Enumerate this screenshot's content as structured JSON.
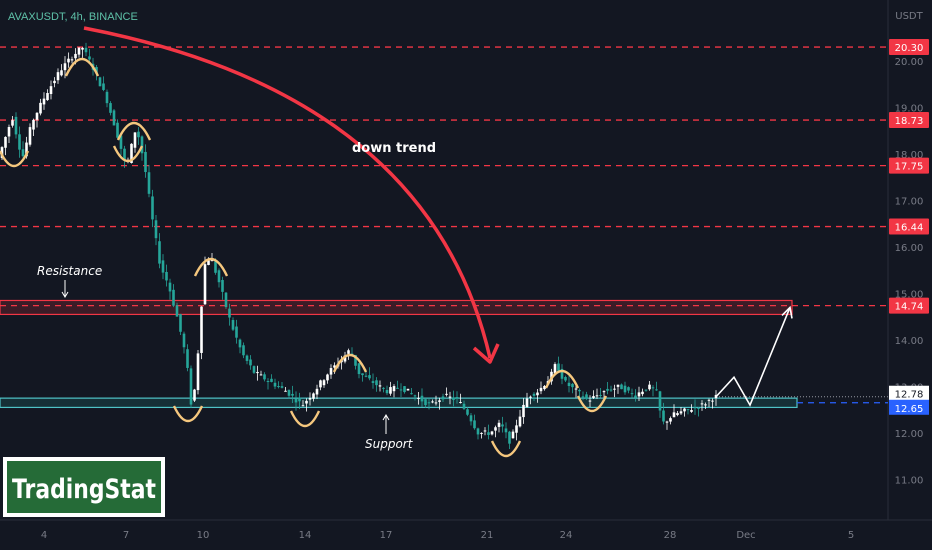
{
  "chart_data": {
    "type": "candlestick",
    "title": "AVAXUSDT, 4h, BINANCE",
    "currency": "USDT",
    "x_ticks": [
      "4",
      "7",
      "10",
      "14",
      "17",
      "21",
      "24",
      "28",
      "Dec",
      "5"
    ],
    "y_ticks": [
      "20.00",
      "19.00",
      "18.00",
      "17.00",
      "16.00",
      "15.00",
      "14.00",
      "13.00",
      "12.00",
      "11.00"
    ],
    "ylim": [
      10.2,
      21.0
    ],
    "levels": [
      {
        "label": "20.30",
        "value": 20.3
      },
      {
        "label": "18.73",
        "value": 18.73
      },
      {
        "label": "17.75",
        "value": 17.75
      },
      {
        "label": "16.44",
        "value": 16.44
      },
      {
        "label": "14.74",
        "value": 14.74
      }
    ],
    "current_price": {
      "label": "12.78",
      "value": 12.78
    },
    "support_level": {
      "label": "12.65",
      "value": 12.65
    },
    "zones": {
      "resistance": {
        "label": "Resistance",
        "low": 14.55,
        "high": 14.85
      },
      "support": {
        "label": "Support",
        "low": 12.55,
        "high": 12.75
      }
    },
    "annotations": {
      "trend_label": "down trend"
    },
    "price_path": [
      [
        0,
        17.9
      ],
      [
        14,
        18.8
      ],
      [
        24,
        17.9
      ],
      [
        34,
        18.7
      ],
      [
        48,
        19.3
      ],
      [
        62,
        19.8
      ],
      [
        74,
        20.1
      ],
      [
        84,
        20.3
      ],
      [
        96,
        19.8
      ],
      [
        108,
        19.2
      ],
      [
        118,
        18.5
      ],
      [
        128,
        17.7
      ],
      [
        138,
        18.6
      ],
      [
        146,
        17.8
      ],
      [
        154,
        16.6
      ],
      [
        162,
        15.6
      ],
      [
        170,
        15.2
      ],
      [
        180,
        14.4
      ],
      [
        188,
        13.6
      ],
      [
        194,
        12.4
      ],
      [
        200,
        13.8
      ],
      [
        206,
        15.6
      ],
      [
        212,
        15.8
      ],
      [
        220,
        15.3
      ],
      [
        232,
        14.4
      ],
      [
        244,
        13.7
      ],
      [
        256,
        13.3
      ],
      [
        272,
        13.1
      ],
      [
        288,
        12.9
      ],
      [
        304,
        12.6
      ],
      [
        316,
        12.9
      ],
      [
        330,
        13.3
      ],
      [
        344,
        13.6
      ],
      [
        352,
        13.8
      ],
      [
        360,
        13.3
      ],
      [
        374,
        13.1
      ],
      [
        388,
        12.9
      ],
      [
        402,
        13.0
      ],
      [
        416,
        12.8
      ],
      [
        432,
        12.6
      ],
      [
        446,
        12.8
      ],
      [
        460,
        12.7
      ],
      [
        470,
        12.4
      ],
      [
        480,
        12.0
      ],
      [
        492,
        12.0
      ],
      [
        502,
        12.2
      ],
      [
        512,
        11.8
      ],
      [
        520,
        12.3
      ],
      [
        530,
        12.8
      ],
      [
        540,
        12.9
      ],
      [
        552,
        13.2
      ],
      [
        558,
        13.5
      ],
      [
        566,
        13.1
      ],
      [
        578,
        12.9
      ],
      [
        590,
        12.7
      ],
      [
        606,
        12.9
      ],
      [
        622,
        13.0
      ],
      [
        636,
        12.8
      ],
      [
        650,
        13.0
      ],
      [
        658,
        12.9
      ],
      [
        664,
        12.2
      ],
      [
        676,
        12.4
      ],
      [
        690,
        12.5
      ],
      [
        704,
        12.6
      ],
      [
        716,
        12.78
      ]
    ],
    "projection": [
      [
        716,
        12.78
      ],
      [
        734,
        13.2
      ],
      [
        750,
        12.6
      ],
      [
        790,
        14.7
      ]
    ],
    "x_positions": [
      44,
      126,
      203,
      305,
      386,
      487,
      566,
      670,
      746,
      851
    ]
  }
}
